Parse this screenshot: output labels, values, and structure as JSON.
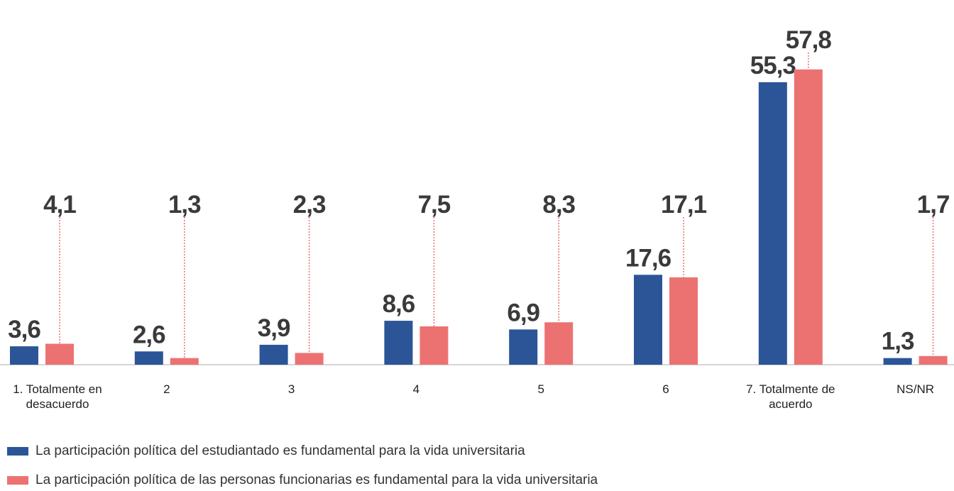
{
  "chart_data": {
    "type": "bar",
    "categories": [
      "1. Totalmente en desacuerdo",
      "2",
      "3",
      "4",
      "5",
      "6",
      "7. Totalmente  de acuerdo",
      "NS/NR"
    ],
    "series": [
      {
        "name": "La participación política del estudiantado es fundamental para la vida universitaria",
        "color": "#2b5597",
        "values": [
          3.6,
          2.6,
          3.9,
          8.6,
          6.9,
          17.6,
          55.3,
          1.3
        ],
        "value_labels": [
          "3,6",
          "2,6",
          "3,9",
          "8,6",
          "6,9",
          "17,6",
          "55,3",
          "1,3"
        ]
      },
      {
        "name": "La participación política de las personas funcionarias es fundamental para la vida universitaria",
        "color": "#ec7272",
        "values": [
          4.1,
          1.3,
          2.3,
          7.5,
          8.3,
          17.1,
          57.8,
          1.7
        ],
        "value_labels": [
          "4,1",
          "1,3",
          "2,3",
          "7,5",
          "8,3",
          "17,1",
          "57,8",
          "1,7"
        ]
      }
    ]
  }
}
